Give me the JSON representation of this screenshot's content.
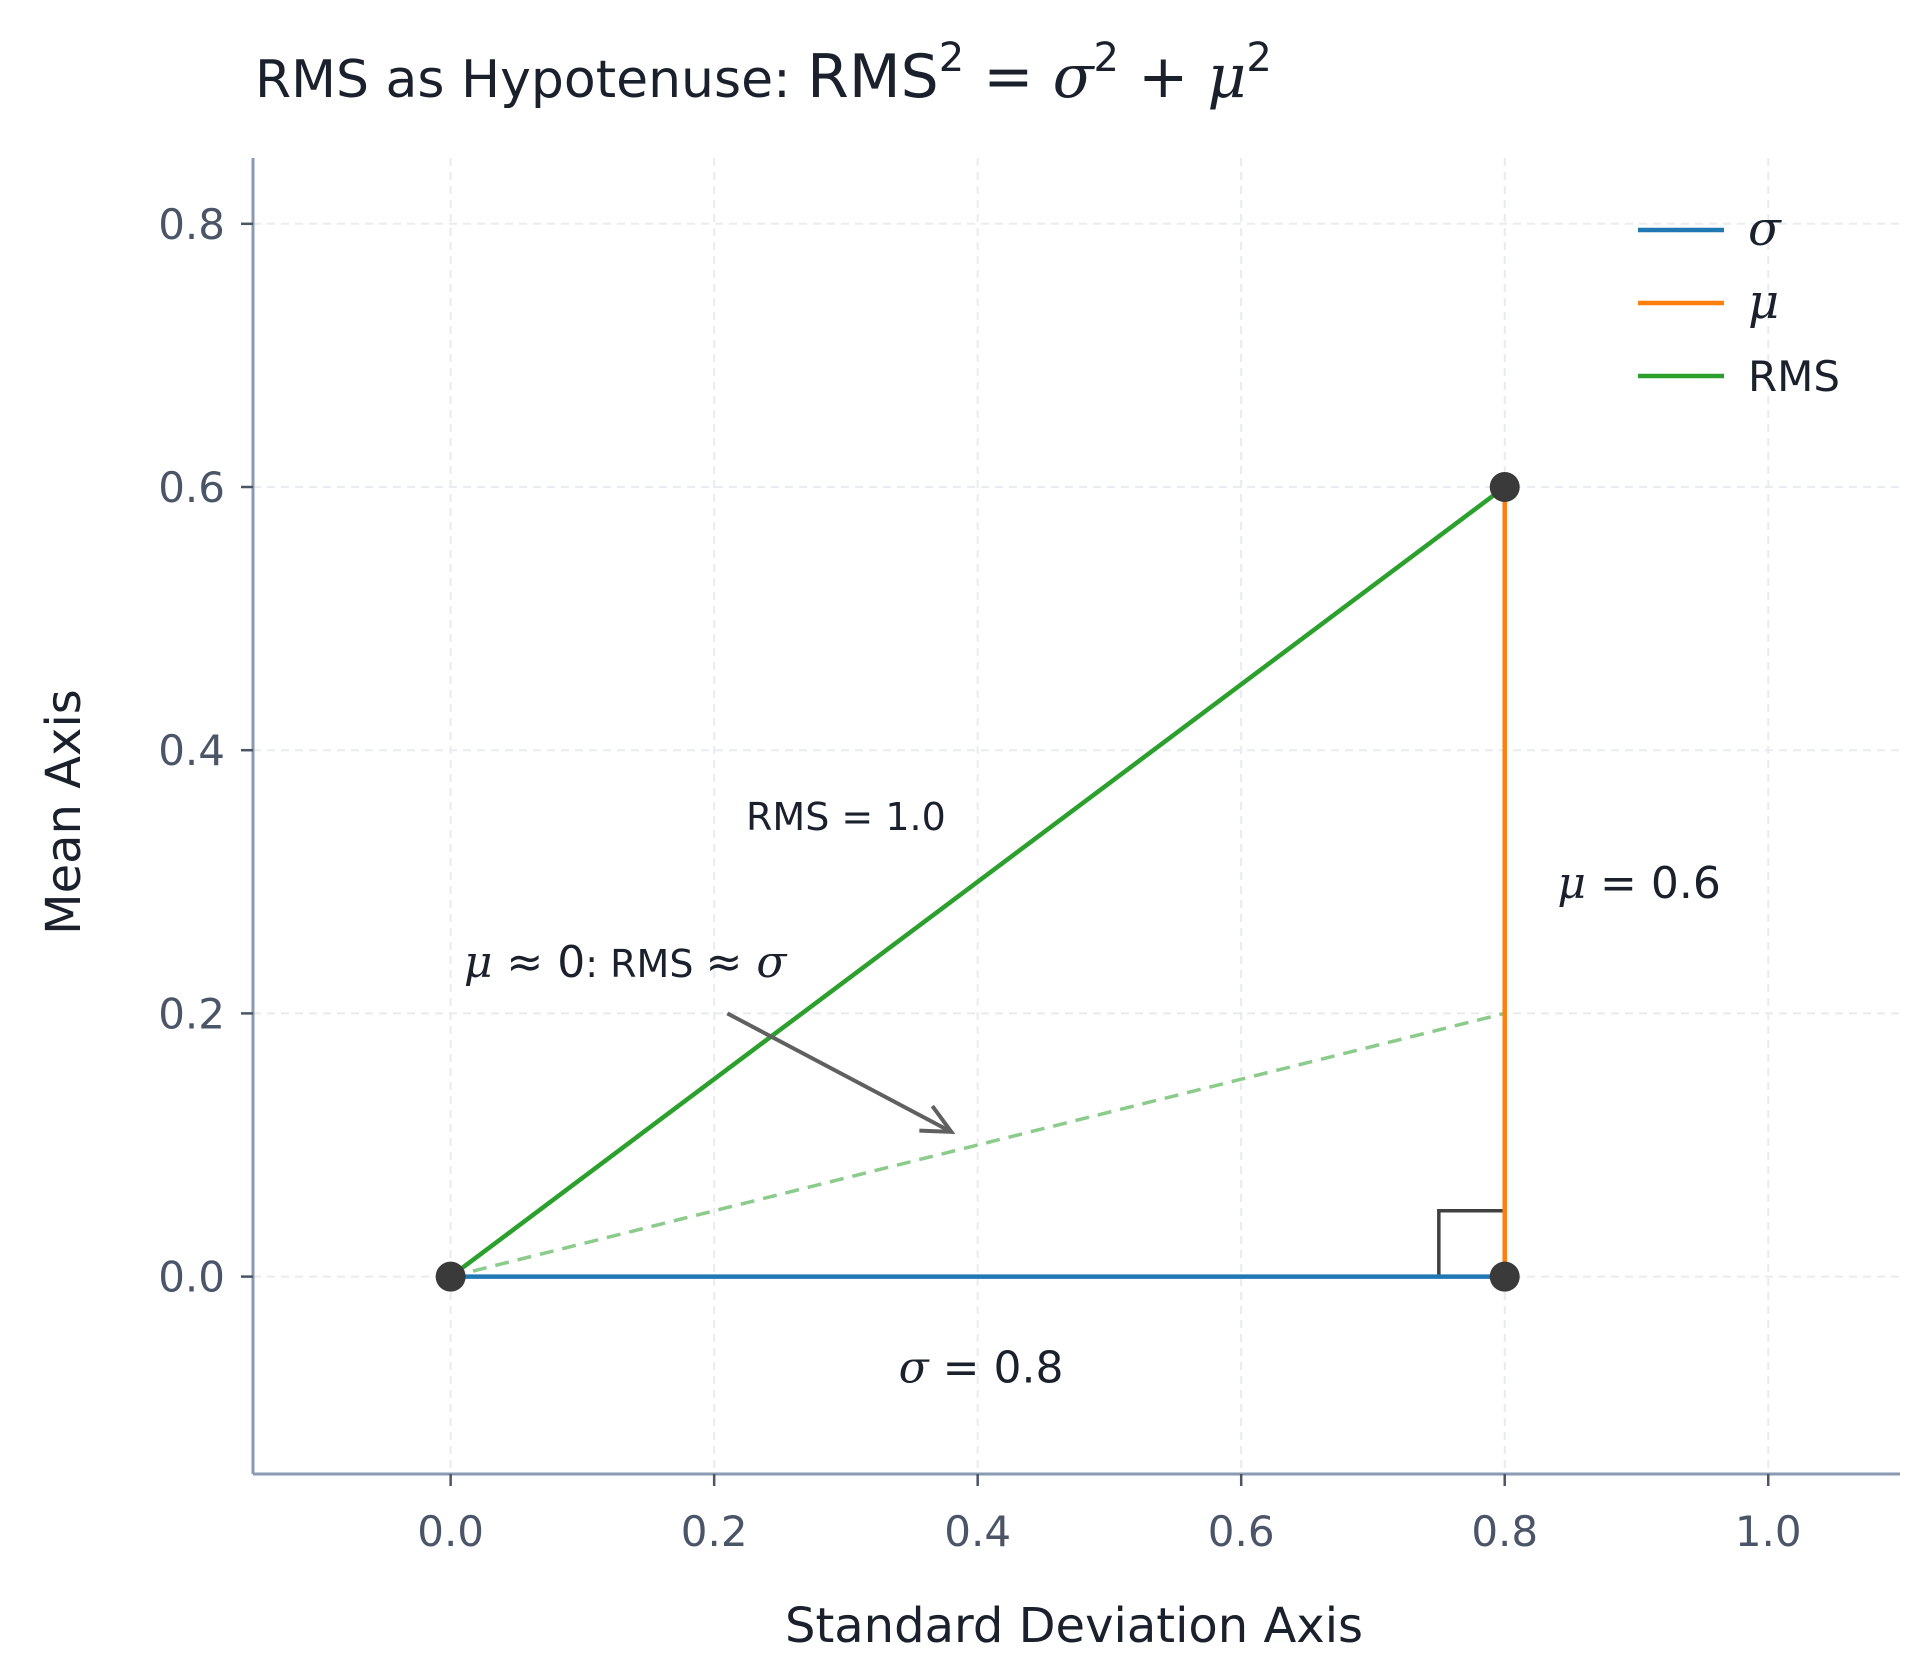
{
  "chart_data": {
    "type": "line",
    "title": {
      "prefix": "RMS as Hypotenuse: ",
      "formula": {
        "a": "RMS",
        "a_exp": "2",
        "eq": " = ",
        "b": "σ",
        "b_exp": "2",
        "plus": " + ",
        "c": "μ",
        "c_exp": "2"
      }
    },
    "xlabel": "Standard Deviation Axis",
    "ylabel": "Mean Axis",
    "xlim": [
      -0.15,
      1.1
    ],
    "ylim": [
      -0.15,
      0.85
    ],
    "x_ticks": [
      {
        "value": 0.0,
        "label": "0.0"
      },
      {
        "value": 0.2,
        "label": "0.2"
      },
      {
        "value": 0.4,
        "label": "0.4"
      },
      {
        "value": 0.6,
        "label": "0.6"
      },
      {
        "value": 0.8,
        "label": "0.8"
      },
      {
        "value": 1.0,
        "label": "1.0"
      }
    ],
    "y_ticks": [
      {
        "value": 0.0,
        "label": "0.0"
      },
      {
        "value": 0.2,
        "label": "0.2"
      },
      {
        "value": 0.4,
        "label": "0.4"
      },
      {
        "value": 0.6,
        "label": "0.6"
      },
      {
        "value": 0.8,
        "label": "0.8"
      }
    ],
    "grid": true,
    "legend_position": "top-right",
    "series": [
      {
        "name": "σ",
        "color": "#1f77b4",
        "x": [
          0.0,
          0.8
        ],
        "y": [
          0.0,
          0.0
        ]
      },
      {
        "name": "μ",
        "color": "#ff7f0e",
        "x": [
          0.8,
          0.8
        ],
        "y": [
          0.0,
          0.6
        ]
      },
      {
        "name": "RMS",
        "color": "#2ca02c",
        "x": [
          0.0,
          0.8
        ],
        "y": [
          0.0,
          0.6
        ]
      }
    ],
    "dashed_line": {
      "color": "#2ca02c",
      "x": [
        0.0,
        0.8
      ],
      "y": [
        0.0,
        0.2
      ]
    },
    "vertices": [
      {
        "x": 0.0,
        "y": 0.0
      },
      {
        "x": 0.8,
        "y": 0.0
      },
      {
        "x": 0.8,
        "y": 0.6
      }
    ],
    "right_angle_marker": {
      "x": 0.75,
      "y": 0.05,
      "corner_x": 0.8,
      "corner_y": 0.0
    },
    "annotations": {
      "rms_label": {
        "text": "RMS = 1.0",
        "x": 0.3,
        "y": 0.35
      },
      "mu_label": {
        "sym": "μ",
        "rest": " = 0.6",
        "x": 0.84,
        "y": 0.3
      },
      "sigma_label": {
        "sym": "σ",
        "rest": " = 0.8",
        "x": 0.34,
        "y": -0.07
      },
      "limit_note": {
        "mu_sym": "μ",
        "approx1": " ≈ 0",
        "colon_text": ": RMS ",
        "approx2": " ≈ ",
        "sigma_sym": "σ",
        "x": 0.01,
        "y": 0.24,
        "arrow_from": [
          0.21,
          0.2
        ],
        "arrow_to": [
          0.38,
          0.11
        ]
      }
    }
  }
}
